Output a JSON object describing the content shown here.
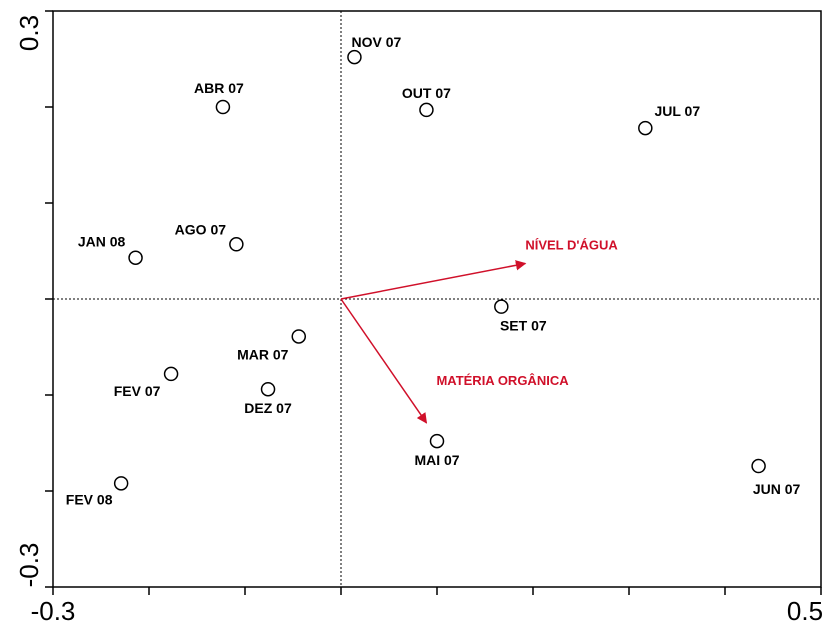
{
  "chart_data": {
    "type": "scatter",
    "title": "",
    "xlabel": "",
    "ylabel": "",
    "xlim": [
      -0.3,
      0.5
    ],
    "ylim": [
      -0.3,
      0.3
    ],
    "x_tick_labels": [
      "-0.3",
      "0.5"
    ],
    "y_tick_labels": [
      "0.3",
      "-0.3"
    ],
    "reference_lines": {
      "x": 0,
      "y": 0,
      "style": "dotted"
    },
    "grid": false,
    "point_color": "#000000",
    "vector_color": "#d0102a",
    "points": [
      {
        "label": "NOV 07",
        "x": 0.014,
        "y": 0.252
      },
      {
        "label": "ABR 07",
        "x": -0.123,
        "y": 0.2
      },
      {
        "label": "OUT 07",
        "x": 0.089,
        "y": 0.197
      },
      {
        "label": "JUL 07",
        "x": 0.317,
        "y": 0.178
      },
      {
        "label": "AGO 07",
        "x": -0.109,
        "y": 0.057
      },
      {
        "label": "JAN 08",
        "x": -0.214,
        "y": 0.043
      },
      {
        "label": "SET 07",
        "x": 0.167,
        "y": -0.008
      },
      {
        "label": "MAR 07",
        "x": -0.044,
        "y": -0.039
      },
      {
        "label": "FEV 07",
        "x": -0.177,
        "y": -0.078
      },
      {
        "label": "DEZ 07",
        "x": -0.076,
        "y": -0.094
      },
      {
        "label": "MAI 07",
        "x": 0.1,
        "y": -0.148
      },
      {
        "label": "JUN 07",
        "x": 0.435,
        "y": -0.174
      },
      {
        "label": "FEV 08",
        "x": -0.229,
        "y": -0.192
      }
    ],
    "vectors": [
      {
        "label": "NÍVEL D'ÁGUA",
        "x": 0.192,
        "y": 0.037
      },
      {
        "label": "MATÉRIA ORGÂNICA",
        "x": 0.089,
        "y": -0.129
      }
    ]
  }
}
